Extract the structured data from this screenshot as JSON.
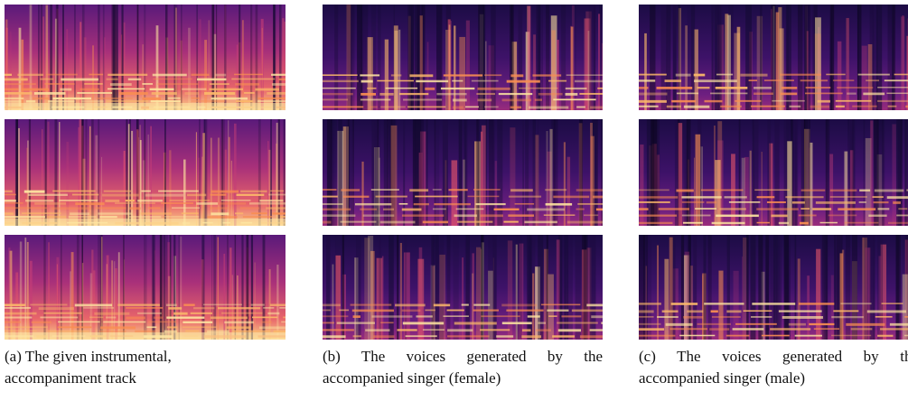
{
  "figure": {
    "captions": [
      {
        "lines": [
          "(a) The given instrumental,",
          "accompaniment track"
        ]
      },
      {
        "lines": [
          "(b) The voices generated by the",
          "accompanied singer (female)"
        ]
      },
      {
        "lines": [
          "(c) The voices generated by the",
          "accompanied singer (male)"
        ]
      }
    ]
  }
}
